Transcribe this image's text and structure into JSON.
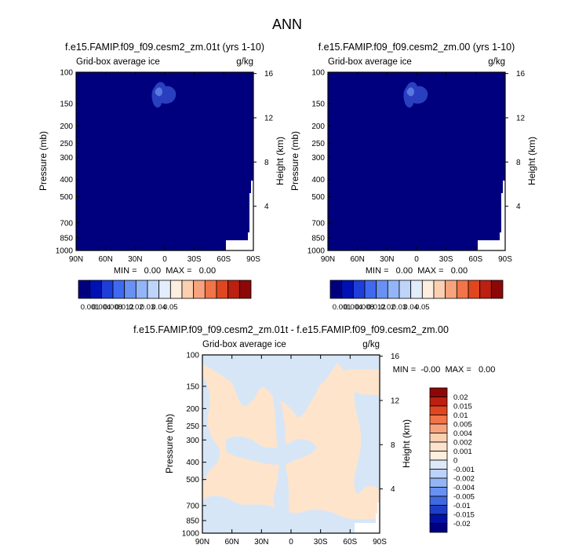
{
  "figure": {
    "title": "ANN"
  },
  "panels": [
    {
      "id": "top-left",
      "title": "f.e15.FAMIP.f09_f09.cesm2_zm.01t (yrs 1-10)",
      "left_string": "Grid-box average ice",
      "right_string": "g/kg",
      "ylabel": "Pressure (mb)",
      "ylabel_right": "Height (km)",
      "minmax": "MIN =   0.00  MAX =   0.00",
      "background_color": "#00007f",
      "feature_color": "#2a3fbf",
      "feature_core_color": "#5a79e0"
    },
    {
      "id": "top-right",
      "title": "f.e15.FAMIP.f09_f09.cesm2_zm.00 (yrs 1-10)",
      "left_string": "Grid-box average ice",
      "right_string": "g/kg",
      "ylabel": "Pressure (mb)",
      "ylabel_right": "Height (km)",
      "minmax": "MIN =   0.00  MAX =   0.00",
      "background_color": "#00007f",
      "feature_color": "#2a3fbf",
      "feature_core_color": "#5a79e0"
    },
    {
      "id": "bottom-diff",
      "title": "f.e15.FAMIP.f09_f09.cesm2_zm.01t - f.e15.FAMIP.f09_f09.cesm2_zm.00",
      "left_string": "Grid-box average ice",
      "right_string": "g/kg",
      "ylabel": "Pressure (mb)",
      "ylabel_right": "Height (km)",
      "minmax": "MIN =  -0.00  MAX =   0.00",
      "background_color": "#ffe4cc",
      "feature_color": "#d6e6f7"
    }
  ],
  "axes": {
    "x_ticks": [
      "90N",
      "60N",
      "30N",
      "0",
      "30S",
      "60S",
      "90S"
    ],
    "x_values": [
      90,
      60,
      30,
      0,
      -30,
      -60,
      -90
    ],
    "y_ticks": [
      "100",
      "150",
      "200",
      "250",
      "300",
      "400",
      "500",
      "700",
      "850",
      "1000"
    ],
    "y_values": [
      100,
      150,
      200,
      250,
      300,
      400,
      500,
      700,
      850,
      1000
    ],
    "y_scale": "log",
    "height_ticks": [
      "16",
      "12",
      "8",
      "4"
    ],
    "height_values": [
      16,
      12,
      8,
      4
    ]
  },
  "colorbar_main": {
    "labels": [
      "0.001",
      "0.004",
      "0.008",
      "0.012",
      "0.02",
      "0.03",
      "0.04",
      "0.05"
    ],
    "colors": [
      "#00007f",
      "#0011b3",
      "#1d3ed9",
      "#3f69f0",
      "#6991f4",
      "#93b5f7",
      "#bed4f9",
      "#e2ecfb",
      "#fdeee0",
      "#fbd0b1",
      "#f7a47e",
      "#f27449",
      "#e0471f",
      "#bb2010",
      "#8c0808"
    ]
  },
  "colorbar_diff": {
    "labels": [
      "0.02",
      "0.015",
      "0.01",
      "0.005",
      "0.004",
      "0.002",
      "0.001",
      "0",
      "-0.001",
      "-0.002",
      "-0.004",
      "-0.005",
      "-0.01",
      "-0.015",
      "-0.02"
    ],
    "colors": [
      "#8c0808",
      "#bb2010",
      "#e0471f",
      "#f27449",
      "#f7a47e",
      "#fbd0b1",
      "#fde3cd",
      "#ffeedd",
      "#dde9f8",
      "#bcd2f6",
      "#93b5f4",
      "#6991f0",
      "#3f69e0",
      "#1d3ec9",
      "#0011a3",
      "#00007f"
    ]
  },
  "chart_data": [
    {
      "type": "heatmap",
      "title": "f.e15.FAMIP.f09_f09.cesm2_zm.01t (yrs 1-10)",
      "xlabel": "",
      "ylabel": "Pressure (mb)",
      "xlim": [
        90,
        -90
      ],
      "ylim": [
        1000,
        100
      ],
      "y_scale": "log",
      "units": "g/kg",
      "min": 0.0,
      "max": 0.0,
      "feature": {
        "lat_center": 5,
        "pressure_center": 200,
        "approx_value": 0.004
      }
    },
    {
      "type": "heatmap",
      "title": "f.e15.FAMIP.f09_f09.cesm2_zm.00 (yrs 1-10)",
      "xlabel": "",
      "ylabel": "Pressure (mb)",
      "xlim": [
        90,
        -90
      ],
      "ylim": [
        1000,
        100
      ],
      "y_scale": "log",
      "units": "g/kg",
      "min": 0.0,
      "max": 0.0,
      "feature": {
        "lat_center": 5,
        "pressure_center": 200,
        "approx_value": 0.004
      }
    },
    {
      "type": "heatmap",
      "title": "f.e15.FAMIP.f09_f09.cesm2_zm.01t - f.e15.FAMIP.f09_f09.cesm2_zm.00",
      "xlabel": "",
      "ylabel": "Pressure (mb)",
      "xlim": [
        90,
        -90
      ],
      "ylim": [
        1000,
        100
      ],
      "y_scale": "log",
      "units": "g/kg",
      "min": -0.0,
      "max": 0.0,
      "dominant_values": [
        0,
        -0.001
      ]
    }
  ]
}
